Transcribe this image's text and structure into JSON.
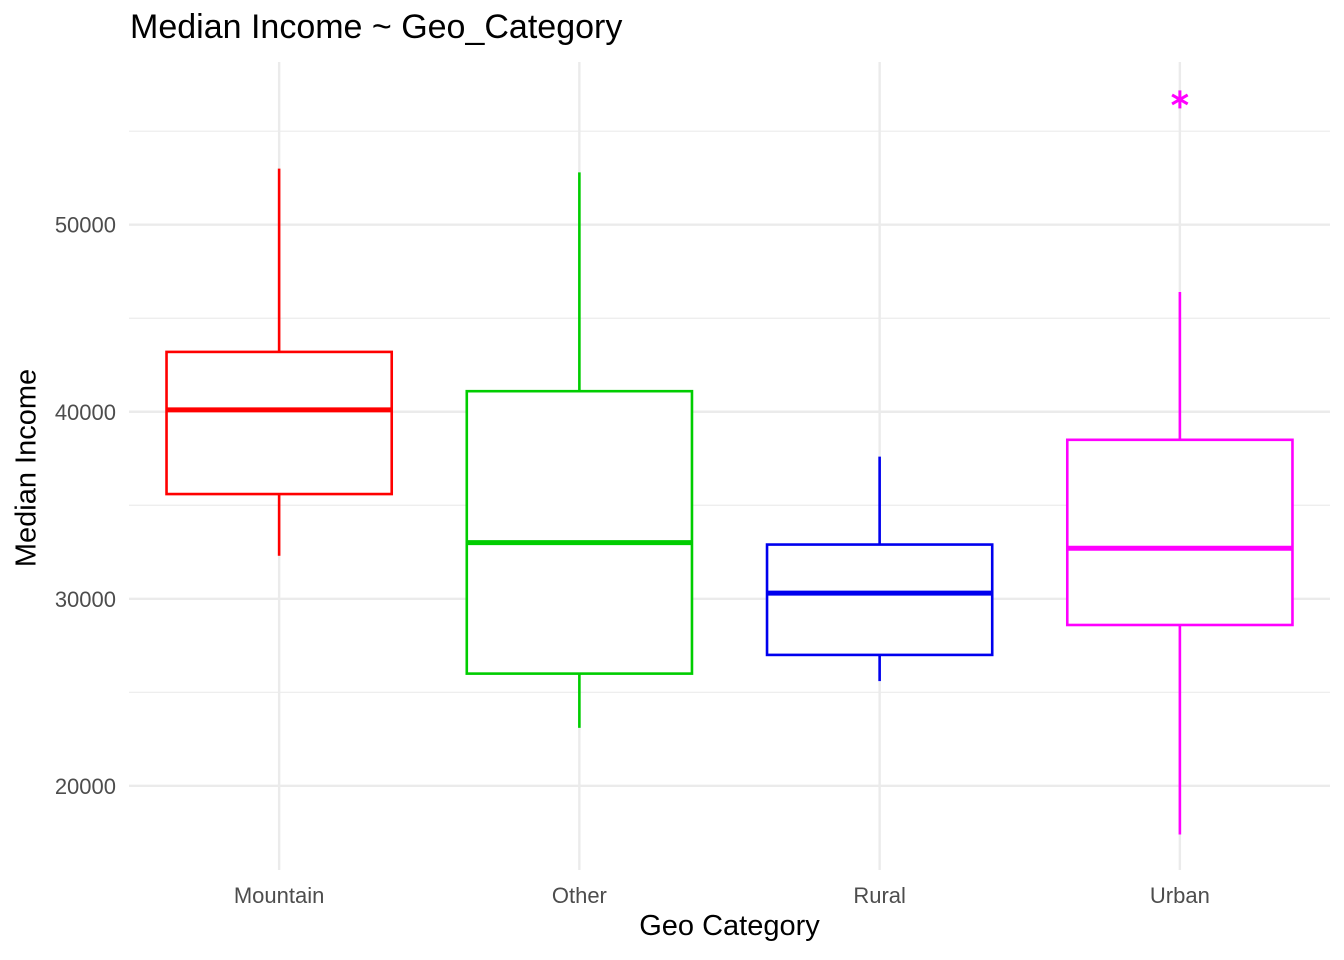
{
  "chart_data": {
    "type": "boxplot",
    "title": "Median Income ~ Geo_Category",
    "xlabel": "Geo Category",
    "ylabel": "Median Income",
    "ylim": [
      15500,
      58700
    ],
    "y_ticks": [
      20000,
      30000,
      40000,
      50000
    ],
    "grid": true,
    "legend": "none",
    "categories": [
      "Mountain",
      "Other",
      "Rural",
      "Urban"
    ],
    "boxes": [
      {
        "category": "Mountain",
        "color": "#ff0000",
        "whisker_low": 32300,
        "q1": 35600,
        "median": 40100,
        "q3": 43200,
        "whisker_high": 53000,
        "outliers": []
      },
      {
        "category": "Other",
        "color": "#00cd00",
        "whisker_low": 23100,
        "q1": 26000,
        "median": 33000,
        "q3": 41100,
        "whisker_high": 52800,
        "outliers": []
      },
      {
        "category": "Rural",
        "color": "#0000ee",
        "whisker_low": 25600,
        "q1": 27000,
        "median": 30300,
        "q3": 32900,
        "whisker_high": 37600,
        "outliers": []
      },
      {
        "category": "Urban",
        "color": "#ff00ff",
        "whisker_low": 17400,
        "q1": 28600,
        "median": 32700,
        "q3": 38500,
        "whisker_high": 46400,
        "outliers": [
          56700
        ]
      }
    ]
  }
}
